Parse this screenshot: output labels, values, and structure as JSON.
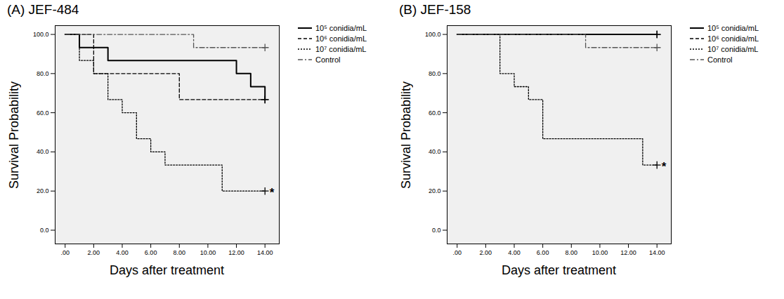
{
  "chart_data": [
    {
      "type": "step",
      "title": "(A) JEF-484",
      "x_label": "Days after treatment",
      "y_label": "Survival Probability",
      "xlim": [
        -0.7,
        15
      ],
      "ylim": [
        -7,
        104.5
      ],
      "xticks": [
        {
          "value": 0,
          "label": ".00"
        },
        {
          "value": 2,
          "label": "2.00"
        },
        {
          "value": 4,
          "label": "4.00"
        },
        {
          "value": 6,
          "label": "6.00"
        },
        {
          "value": 8,
          "label": "8.00"
        },
        {
          "value": 10,
          "label": "10.00"
        },
        {
          "value": 12,
          "label": "12.00"
        },
        {
          "value": 14,
          "label": "14.00"
        }
      ],
      "yticks": [
        {
          "value": 0,
          "label": "0.0"
        },
        {
          "value": 20,
          "label": "20.0"
        },
        {
          "value": 40,
          "label": "40.0"
        },
        {
          "value": 60,
          "label": "60.0"
        },
        {
          "value": 80,
          "label": "80.0"
        },
        {
          "value": 100,
          "label": "100.0"
        }
      ],
      "legend": "right",
      "series": [
        {
          "name": "10⁵ conidia/mL",
          "color": "#000000",
          "line_style": "solid",
          "x": [
            0,
            1,
            3,
            12,
            13,
            14
          ],
          "values": [
            100,
            93.3,
            86.7,
            80,
            73.3,
            66.7
          ]
        },
        {
          "name": "10⁶ conidia/mL",
          "color": "#000000",
          "line_style": "dashed",
          "x": [
            0,
            2,
            8,
            14
          ],
          "values": [
            100,
            80,
            66.7,
            66.7
          ]
        },
        {
          "name": "10⁷ conidia/mL",
          "color": "#000000",
          "line_style": "dotted",
          "x": [
            0,
            1,
            2,
            3,
            4,
            5,
            6,
            7,
            11,
            14
          ],
          "values": [
            100,
            86.7,
            80,
            66.7,
            60,
            46.7,
            40,
            33.3,
            20,
            20
          ]
        },
        {
          "name": "Control",
          "color": "#555555",
          "line_style": "dashdot",
          "x": [
            0,
            9,
            14
          ],
          "values": [
            100,
            93.3,
            93.3
          ]
        }
      ],
      "annotations": [
        {
          "text": "*",
          "series": "10⁷ conidia/mL"
        }
      ]
    },
    {
      "type": "step",
      "title": "(B) JEF-158",
      "x_label": "Days after treatment",
      "y_label": "Survival Probability",
      "xlim": [
        -0.7,
        15
      ],
      "ylim": [
        -7,
        104.5
      ],
      "xticks": [
        {
          "value": 0,
          "label": ".00"
        },
        {
          "value": 2,
          "label": "2.00"
        },
        {
          "value": 4,
          "label": "4.00"
        },
        {
          "value": 6,
          "label": "6.00"
        },
        {
          "value": 8,
          "label": "8.00"
        },
        {
          "value": 10,
          "label": "10.00"
        },
        {
          "value": 12,
          "label": "12.00"
        },
        {
          "value": 14,
          "label": "14.00"
        }
      ],
      "yticks": [
        {
          "value": 0,
          "label": "0.0"
        },
        {
          "value": 20,
          "label": "20.0"
        },
        {
          "value": 40,
          "label": "40.0"
        },
        {
          "value": 60,
          "label": "60.0"
        },
        {
          "value": 80,
          "label": "80.0"
        },
        {
          "value": 100,
          "label": "100.0"
        }
      ],
      "legend": "right",
      "series": [
        {
          "name": "10⁵ conidia/mL",
          "color": "#000000",
          "line_style": "solid",
          "x": [
            0,
            14
          ],
          "values": [
            100,
            100
          ]
        },
        {
          "name": "10⁶ conidia/mL",
          "color": "#000000",
          "line_style": "dashed",
          "x": [
            0,
            14
          ],
          "values": [
            100,
            100
          ]
        },
        {
          "name": "10⁷ conidia/mL",
          "color": "#000000",
          "line_style": "dotted",
          "x": [
            0,
            3,
            4,
            5,
            6,
            13,
            14
          ],
          "values": [
            100,
            80,
            73.3,
            66.7,
            46.7,
            33.3,
            33.3
          ]
        },
        {
          "name": "Control",
          "color": "#555555",
          "line_style": "dashdot",
          "x": [
            0,
            9,
            14
          ],
          "values": [
            100,
            93.3,
            93.3
          ]
        }
      ],
      "annotations": [
        {
          "text": "*",
          "series": "10⁷ conidia/mL"
        }
      ]
    }
  ]
}
